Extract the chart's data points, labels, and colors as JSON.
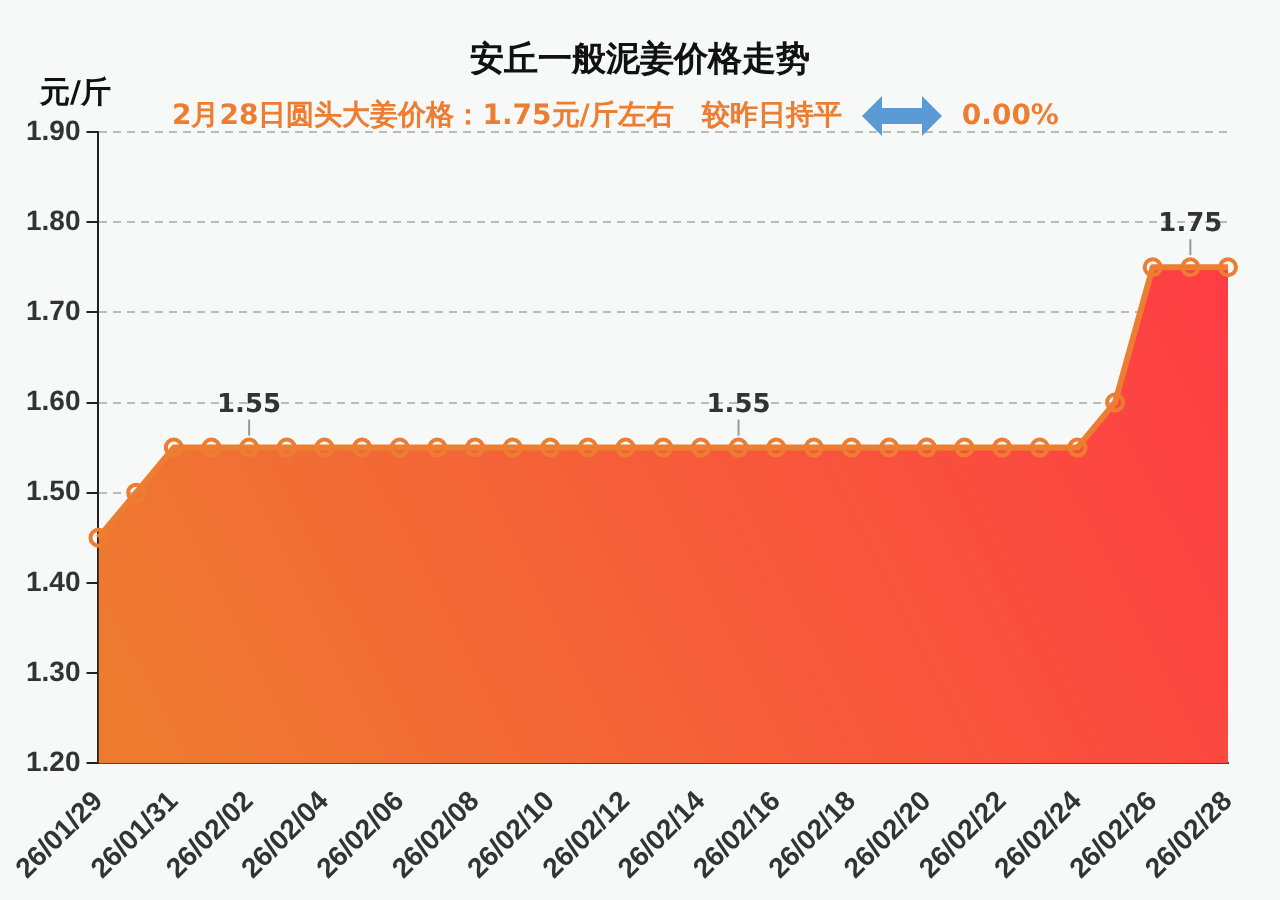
{
  "chart_data": {
    "type": "area",
    "title": "安丘一般泥姜价格走势",
    "subtitle": "2月28日圆头大姜价格：1.75元/斤左右　较昨日持平",
    "annotations": [
      "0.00%"
    ],
    "ylabel": "元/斤",
    "categories": [
      "26/01/29",
      null,
      "26/01/31",
      null,
      "26/02/02",
      null,
      "26/02/04",
      null,
      "26/02/06",
      null,
      "26/02/08",
      null,
      "26/02/10",
      null,
      "26/02/12",
      null,
      "26/02/14",
      null,
      "26/02/16",
      null,
      "26/02/18",
      null,
      "26/02/20",
      null,
      "26/02/22",
      null,
      "26/02/24",
      null,
      "26/02/26",
      null,
      "26/02/28"
    ],
    "series": [
      {
        "color": "#ed7d31",
        "values": [
          1.45,
          1.5,
          1.55,
          1.55,
          1.55,
          1.55,
          1.55,
          1.55,
          1.55,
          1.55,
          1.55,
          1.55,
          1.55,
          1.55,
          1.55,
          1.55,
          1.55,
          1.55,
          1.55,
          1.55,
          1.55,
          1.55,
          1.55,
          1.55,
          1.55,
          1.55,
          1.55,
          1.6,
          1.75,
          1.75,
          1.75
        ],
        "value_labels": [
          null,
          null,
          null,
          null,
          "1.55",
          null,
          null,
          null,
          null,
          null,
          null,
          null,
          null,
          null,
          null,
          null,
          null,
          "1.55",
          null,
          null,
          null,
          null,
          null,
          null,
          null,
          null,
          null,
          null,
          null,
          "1.75",
          null
        ]
      }
    ],
    "ylim": [
      1.2,
      1.9
    ],
    "yticks": [
      {
        "value": 1.2,
        "label": "1.20"
      },
      {
        "value": 1.3,
        "label": "1.30"
      },
      {
        "value": 1.4,
        "label": "1.40"
      },
      {
        "value": 1.5,
        "label": "1.50"
      },
      {
        "value": 1.6,
        "label": "1.60"
      },
      {
        "value": 1.7,
        "label": "1.70"
      },
      {
        "value": 1.8,
        "label": "1.80"
      },
      {
        "value": 1.9,
        "label": "1.90"
      }
    ],
    "grid": "y",
    "marker": "circle",
    "legend": false
  }
}
